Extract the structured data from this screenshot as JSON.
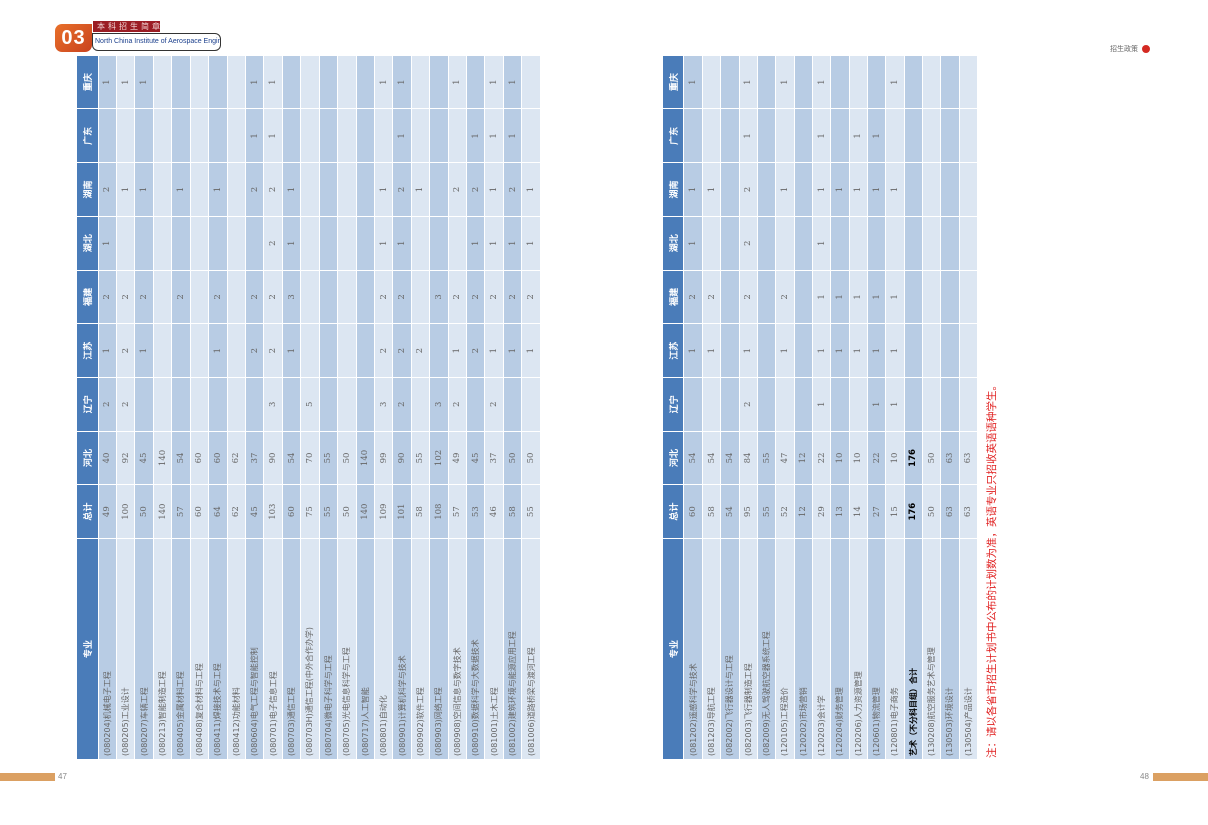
{
  "header": {
    "chapter_number": "03",
    "brochure_title": "本科招生简章",
    "institute_name": "North China Institute of Aerospace Engineering",
    "section_label": "招生政策",
    "accent_color": "#d42a22"
  },
  "columns": [
    "专业",
    "总计",
    "河北",
    "辽宁",
    "江苏",
    "福建",
    "湖北",
    "湖南",
    "广东",
    "重庆"
  ],
  "left_table": [
    [
      "(080204)机械电子工程",
      "49",
      "40",
      "2",
      "1",
      "2",
      "1",
      "2",
      "",
      "1"
    ],
    [
      "(080205)工业设计",
      "100",
      "92",
      "2",
      "2",
      "2",
      "",
      "1",
      "",
      "1"
    ],
    [
      "(080207)车辆工程",
      "50",
      "45",
      "",
      "1",
      "2",
      "",
      "1",
      "",
      "1"
    ],
    [
      "(080213)智能制造工程",
      "140",
      "140",
      "",
      "",
      "",
      "",
      "",
      "",
      ""
    ],
    [
      "(080405)金属材料工程",
      "57",
      "54",
      "",
      "",
      "2",
      "",
      "1",
      "",
      ""
    ],
    [
      "(080408)复合材料与工程",
      "60",
      "60",
      "",
      "",
      "",
      "",
      "",
      "",
      ""
    ],
    [
      "(080411)焊接技术与工程",
      "64",
      "60",
      "",
      "1",
      "2",
      "",
      "1",
      "",
      ""
    ],
    [
      "(080412)功能材料",
      "62",
      "62",
      "",
      "",
      "",
      "",
      "",
      "",
      ""
    ],
    [
      "(080604)电气工程与智能控制",
      "45",
      "37",
      "",
      "2",
      "2",
      "",
      "2",
      "1",
      "1"
    ],
    [
      "(080701)电子信息工程",
      "103",
      "90",
      "3",
      "2",
      "2",
      "2",
      "2",
      "1",
      "1"
    ],
    [
      "(080703)通信工程",
      "60",
      "54",
      "",
      "1",
      "3",
      "1",
      "1",
      "",
      ""
    ],
    [
      "(080703H)通信工程(中外合作办学)",
      "75",
      "70",
      "5",
      "",
      "",
      "",
      "",
      "",
      ""
    ],
    [
      "(080704)微电子科学与工程",
      "55",
      "55",
      "",
      "",
      "",
      "",
      "",
      "",
      ""
    ],
    [
      "(080705)光电信息科学与工程",
      "50",
      "50",
      "",
      "",
      "",
      "",
      "",
      "",
      ""
    ],
    [
      "(080717)人工智能",
      "140",
      "140",
      "",
      "",
      "",
      "",
      "",
      "",
      ""
    ],
    [
      "(080801)自动化",
      "109",
      "99",
      "3",
      "2",
      "2",
      "1",
      "1",
      "",
      "1"
    ],
    [
      "(080901)计算机科学与技术",
      "101",
      "90",
      "2",
      "2",
      "2",
      "1",
      "2",
      "1",
      "1"
    ],
    [
      "(080902)软件工程",
      "58",
      "55",
      "",
      "2",
      "",
      "",
      "1",
      "",
      ""
    ],
    [
      "(080903)网络工程",
      "108",
      "102",
      "3",
      "",
      "3",
      "",
      "",
      "",
      ""
    ],
    [
      "(080908)空间信息与数字技术",
      "57",
      "49",
      "2",
      "1",
      "2",
      "",
      "2",
      "",
      "1"
    ],
    [
      "(080910)数据科学与大数据技术",
      "53",
      "45",
      "",
      "2",
      "2",
      "1",
      "2",
      "1",
      ""
    ],
    [
      "(081001)土木工程",
      "46",
      "37",
      "2",
      "1",
      "2",
      "1",
      "1",
      "1",
      "1"
    ],
    [
      "(081002)建筑环境与能源应用工程",
      "58",
      "50",
      "",
      "1",
      "2",
      "1",
      "2",
      "1",
      "1"
    ],
    [
      "(081006)道路桥梁与渡河工程",
      "55",
      "50",
      "",
      "1",
      "2",
      "1",
      "1",
      "",
      ""
    ]
  ],
  "right_table": [
    [
      "(081202)遥感科学与技术",
      "60",
      "54",
      "",
      "1",
      "2",
      "1",
      "1",
      "",
      "1"
    ],
    [
      "(081203)导航工程",
      "58",
      "54",
      "",
      "1",
      "2",
      "",
      "1",
      "",
      ""
    ],
    [
      "(082002)飞行器设计与工程",
      "54",
      "54",
      "",
      "",
      "",
      "",
      "",
      "",
      ""
    ],
    [
      "(082003)飞行器制造工程",
      "95",
      "84",
      "2",
      "1",
      "2",
      "2",
      "2",
      "1",
      "1"
    ],
    [
      "(082009)无人驾驶航空器系统工程",
      "55",
      "55",
      "",
      "",
      "",
      "",
      "",
      "",
      ""
    ],
    [
      "(120105)工程造价",
      "52",
      "47",
      "",
      "1",
      "2",
      "",
      "1",
      "",
      "1"
    ],
    [
      "(120202)市场营销",
      "12",
      "12",
      "",
      "",
      "",
      "",
      "",
      "",
      ""
    ],
    [
      "(120203)会计学",
      "29",
      "22",
      "1",
      "1",
      "1",
      "1",
      "1",
      "1",
      "1"
    ],
    [
      "(120204)财务管理",
      "13",
      "10",
      "",
      "1",
      "1",
      "",
      "1",
      "",
      ""
    ],
    [
      "(120206)人力资源管理",
      "14",
      "10",
      "",
      "1",
      "1",
      "",
      "1",
      "1",
      ""
    ],
    [
      "(120601)物流管理",
      "27",
      "22",
      "1",
      "1",
      "1",
      "",
      "1",
      "1",
      ""
    ],
    [
      "(120801)电子商务",
      "15",
      "10",
      "1",
      "1",
      "1",
      "",
      "1",
      "",
      "1"
    ],
    [
      "艺术（不分科目组）合计",
      "176",
      "176",
      "",
      "",
      "",
      "",
      "",
      "",
      ""
    ],
    [
      "(130208)航空服务艺术与管理",
      "50",
      "50",
      "",
      "",
      "",
      "",
      "",
      "",
      ""
    ],
    [
      "(130503)环境设计",
      "63",
      "63",
      "",
      "",
      "",
      "",
      "",
      "",
      ""
    ],
    [
      "(130504)产品设计",
      "63",
      "63",
      "",
      "",
      "",
      "",
      "",
      "",
      ""
    ]
  ],
  "right_table_bold_row": 12,
  "note": "注：请以各省市招生计划书中公布的计划数为准，英语专业只招收英语语种学生。",
  "footer": {
    "left_page": "47",
    "right_page": "48"
  }
}
